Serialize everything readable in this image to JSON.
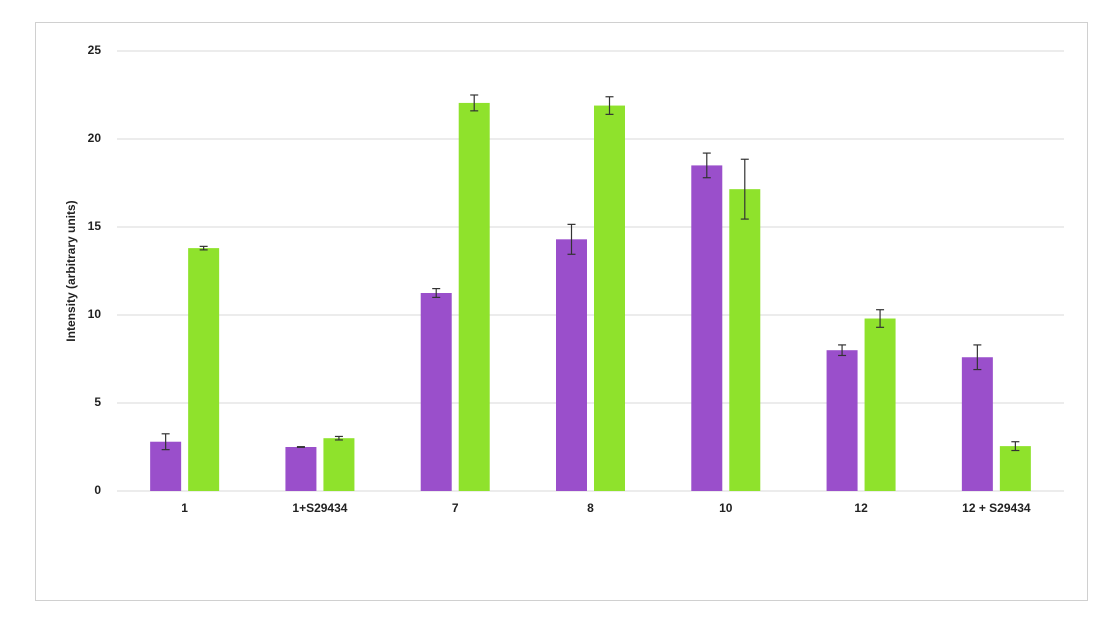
{
  "chart_data": {
    "type": "bar",
    "y_label": "Intensity (arbitrary units)",
    "categories": [
      "1",
      "1+S29434",
      "7",
      "8",
      "10",
      "12",
      "12 + S29434"
    ],
    "series": [
      {
        "color": "#9a4fcb",
        "values": [
          2.8,
          2.5,
          11.25,
          14.3,
          18.5,
          8.0,
          7.6
        ],
        "errors": [
          0.45,
          0.02,
          0.25,
          0.85,
          0.7,
          0.3,
          0.7
        ]
      },
      {
        "color": "#8fe22c",
        "values": [
          13.8,
          3.0,
          22.05,
          21.9,
          17.15,
          9.8,
          2.55
        ],
        "errors": [
          0.1,
          0.1,
          0.45,
          0.5,
          1.7,
          0.5,
          0.25
        ]
      }
    ],
    "ylim": [
      0,
      25
    ],
    "yticks": [
      0,
      5,
      10,
      15,
      20,
      25
    ],
    "grid": true
  }
}
